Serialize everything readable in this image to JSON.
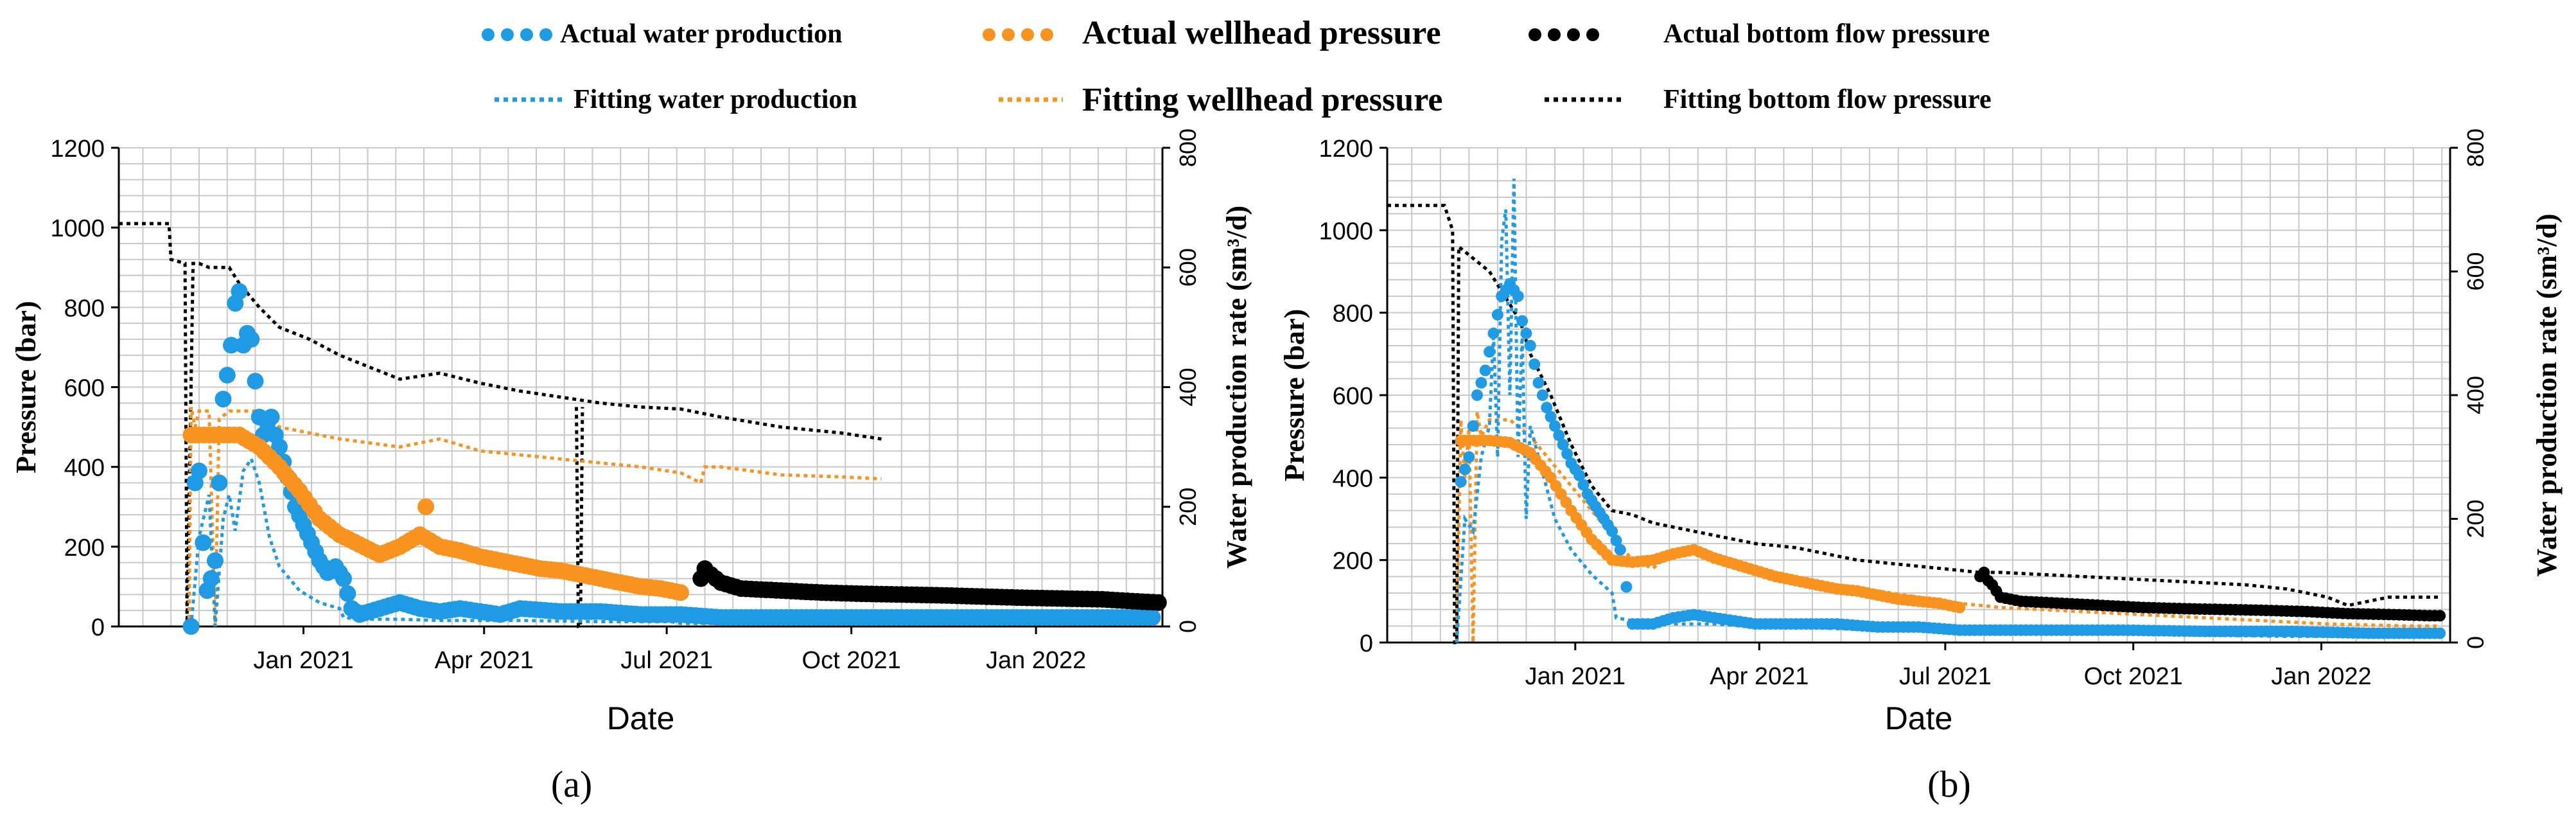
{
  "colors": {
    "water": "#1f9be5",
    "wellhead": "#f7931e",
    "bottom": "#000000",
    "grid": "#c9c9c9"
  },
  "legend": {
    "actual_water": "Actual water production",
    "actual_wellhead": "Actual wellhead pressure",
    "actual_bottom": "Actual bottom flow pressure",
    "fitting_water": "Fitting water production",
    "fitting_wellhead": "Fitting wellhead pressure",
    "fitting_bottom": "Fitting bottom flow pressure"
  },
  "chart_data": [
    {
      "id": "a",
      "panel_label": "(a)",
      "type": "line",
      "title": "",
      "xlabel": "Date",
      "ylabel_left": "Pressure (bar)",
      "ylabel_right": "Water production rate (sm³/d)",
      "ylim_left": [
        0,
        1200
      ],
      "ylim_right": [
        0,
        800
      ],
      "yticks_left": [
        0,
        200,
        400,
        600,
        800,
        1000,
        1200
      ],
      "yticks_right": [
        0,
        200,
        400,
        600,
        800
      ],
      "x_unit": "days since 2020-10-01",
      "xlim": [
        0,
        520
      ],
      "xticks": [
        {
          "day": 92,
          "label": "Jan 2021"
        },
        {
          "day": 182,
          "label": "Apr 2021"
        },
        {
          "day": 273,
          "label": "Jul 2021"
        },
        {
          "day": 365,
          "label": "Oct 2021"
        },
        {
          "day": 457,
          "label": "Jan 2022"
        }
      ],
      "grid": true,
      "series": [
        {
          "name": "Fitting bottom flow pressure",
          "axis": "left",
          "style": "dotted",
          "color": "#000000",
          "x": [
            0,
            25,
            26,
            33,
            34,
            37,
            40,
            45,
            55,
            60,
            70,
            80,
            95,
            110,
            125,
            140,
            160,
            180,
            200,
            220,
            240,
            260,
            280,
            300,
            330,
            360,
            380
          ],
          "y": [
            1010,
            1010,
            920,
            910,
            0,
            910,
            910,
            900,
            900,
            860,
            800,
            750,
            720,
            680,
            650,
            620,
            635,
            610,
            590,
            575,
            560,
            550,
            545,
            525,
            500,
            485,
            470
          ]
        },
        {
          "name": "Fitting bottom flow pressure (spike)",
          "axis": "left",
          "style": "dotted",
          "color": "#000000",
          "x": [
            228,
            229,
            230,
            231
          ],
          "y": [
            550,
            0,
            0,
            550
          ]
        },
        {
          "name": "Fitting wellhead pressure",
          "axis": "left",
          "style": "dotted",
          "color": "#f7931e",
          "x": [
            35,
            36,
            38,
            40,
            45,
            48,
            50,
            55,
            60,
            70,
            80,
            90,
            100,
            110,
            125,
            140,
            160,
            180,
            200,
            220,
            240,
            260,
            280,
            290,
            292,
            300,
            330,
            360,
            380
          ],
          "y": [
            0,
            550,
            500,
            540,
            540,
            0,
            520,
            540,
            540,
            540,
            500,
            490,
            480,
            470,
            460,
            450,
            470,
            440,
            430,
            420,
            410,
            400,
            385,
            360,
            400,
            400,
            380,
            375,
            370
          ]
        },
        {
          "name": "Fitting water production",
          "axis": "right",
          "style": "dotted",
          "color": "#1f9be5",
          "x": [
            36,
            40,
            45,
            48,
            52,
            55,
            58,
            62,
            66,
            70,
            75,
            80,
            90,
            100,
            110,
            112,
            120,
            140,
            160,
            200,
            240,
            275,
            280,
            300,
            340,
            380
          ],
          "y": [
            0,
            150,
            220,
            0,
            180,
            220,
            160,
            260,
            280,
            240,
            150,
            100,
            60,
            40,
            30,
            15,
            12,
            12,
            10,
            10,
            8,
            8,
            5,
            5,
            5,
            5
          ]
        },
        {
          "name": "Actual water production",
          "axis": "right",
          "style": "dots",
          "color": "#1f9be5",
          "x": [
            36,
            38,
            40,
            42,
            44,
            46,
            48,
            50,
            52,
            54,
            56,
            58,
            60,
            62,
            64,
            66,
            68,
            70,
            72,
            74,
            76,
            78,
            80,
            84,
            88,
            92,
            96,
            100,
            104,
            108,
            112,
            116,
            120,
            130,
            140,
            150,
            160,
            170,
            180,
            190,
            200,
            220,
            240,
            260,
            280,
            300,
            330,
            360,
            400,
            440,
            480,
            515
          ],
          "y": [
            0,
            240,
            260,
            140,
            60,
            80,
            110,
            240,
            380,
            420,
            470,
            540,
            560,
            470,
            490,
            480,
            410,
            350,
            320,
            340,
            350,
            320,
            300,
            250,
            200,
            170,
            140,
            110,
            90,
            100,
            80,
            30,
            20,
            30,
            40,
            30,
            25,
            30,
            25,
            20,
            30,
            25,
            25,
            20,
            20,
            15,
            15,
            15,
            15,
            15,
            15,
            15
          ]
        },
        {
          "name": "Actual wellhead pressure",
          "axis": "left",
          "style": "dots",
          "color": "#f7931e",
          "x": [
            36,
            40,
            50,
            60,
            70,
            80,
            90,
            100,
            110,
            120,
            130,
            140,
            150,
            160,
            170,
            180,
            190,
            200,
            210,
            220,
            230,
            240,
            250,
            260,
            270,
            280
          ],
          "y": [
            480,
            480,
            480,
            480,
            450,
            400,
            340,
            270,
            230,
            205,
            180,
            200,
            230,
            200,
            190,
            175,
            165,
            155,
            145,
            140,
            130,
            120,
            110,
            100,
            95,
            85
          ]
        },
        {
          "name": "Actual wellhead pressure (outlier)",
          "axis": "left",
          "style": "dots",
          "color": "#f7931e",
          "x": [
            153
          ],
          "y": [
            300
          ]
        },
        {
          "name": "Actual bottom flow pressure",
          "axis": "left",
          "style": "dots",
          "color": "#000000",
          "x": [
            290,
            292,
            295,
            300,
            310,
            330,
            350,
            370,
            390,
            410,
            430,
            450,
            470,
            490,
            500,
            510,
            518
          ],
          "y": [
            120,
            145,
            130,
            110,
            95,
            90,
            85,
            82,
            80,
            78,
            75,
            72,
            70,
            68,
            65,
            62,
            60
          ]
        }
      ]
    },
    {
      "id": "b",
      "panel_label": "(b)",
      "type": "line",
      "title": "",
      "xlabel": "Date",
      "ylabel_left": "Pressure (bar)",
      "ylabel_right": "Water production rate (sm³/d)",
      "ylim_left": [
        0,
        1200
      ],
      "ylim_right": [
        0,
        800
      ],
      "yticks_left": [
        0,
        200,
        400,
        600,
        800,
        1000,
        1200
      ],
      "yticks_right": [
        0,
        200,
        400,
        600,
        800
      ],
      "x_unit": "days since 2020-10-01",
      "xlim": [
        0,
        520
      ],
      "xticks": [
        {
          "day": 92,
          "label": "Jan 2021"
        },
        {
          "day": 182,
          "label": "Apr 2021"
        },
        {
          "day": 273,
          "label": "Jul 2021"
        },
        {
          "day": 365,
          "label": "Oct 2021"
        },
        {
          "day": 457,
          "label": "Jan 2022"
        }
      ],
      "grid": true,
      "series": [
        {
          "name": "Fitting bottom flow pressure",
          "axis": "left",
          "style": "dotted",
          "color": "#000000",
          "x": [
            0,
            28,
            32,
            33,
            34,
            35,
            40,
            45,
            50,
            55,
            60,
            65,
            70,
            80,
            90,
            100,
            110,
            120,
            130,
            140,
            150,
            160,
            170,
            180,
            190,
            200,
            210,
            220,
            230,
            240,
            250,
            260,
            270,
            280,
            290,
            300,
            320,
            340,
            360,
            380,
            400,
            420,
            440,
            460,
            470,
            480,
            490,
            500,
            510,
            515
          ],
          "y": [
            1060,
            1060,
            1000,
            0,
            0,
            960,
            940,
            920,
            900,
            860,
            820,
            780,
            700,
            600,
            480,
            380,
            320,
            310,
            290,
            280,
            270,
            260,
            250,
            240,
            235,
            230,
            220,
            210,
            200,
            195,
            190,
            185,
            180,
            175,
            170,
            170,
            165,
            160,
            155,
            150,
            145,
            140,
            130,
            110,
            90,
            100,
            110,
            110,
            110,
            110
          ]
        },
        {
          "name": "Fitting wellhead pressure",
          "axis": "left",
          "style": "dotted",
          "color": "#f7931e",
          "x": [
            34,
            36,
            38,
            40,
            42,
            44,
            46,
            50,
            55,
            60,
            65,
            70,
            80,
            90,
            100,
            110,
            120,
            130,
            140,
            150,
            160,
            170,
            180,
            190,
            200,
            220,
            240,
            260,
            280,
            300,
            340,
            380,
            420,
            460,
            500,
            515
          ],
          "y": [
            0,
            540,
            400,
            520,
            0,
            560,
            500,
            540,
            540,
            540,
            520,
            500,
            440,
            380,
            320,
            260,
            200,
            180,
            220,
            230,
            210,
            190,
            170,
            160,
            150,
            140,
            125,
            110,
            95,
            85,
            75,
            65,
            55,
            45,
            40,
            40
          ]
        },
        {
          "name": "Fitting water production",
          "axis": "right",
          "style": "dotted",
          "color": "#1f9be5",
          "x": [
            34,
            38,
            42,
            46,
            50,
            52,
            54,
            56,
            58,
            60,
            62,
            64,
            66,
            68,
            70,
            74,
            78,
            82,
            90,
            100,
            110,
            112,
            120,
            140,
            160,
            180,
            200,
            240,
            280,
            320,
            360,
            400,
            440,
            480,
            515
          ],
          "y": [
            0,
            200,
            180,
            300,
            350,
            500,
            300,
            650,
            700,
            400,
            750,
            300,
            500,
            200,
            350,
            300,
            250,
            200,
            150,
            110,
            80,
            40,
            35,
            30,
            30,
            25,
            25,
            20,
            18,
            15,
            15,
            12,
            10,
            10,
            10
          ]
        },
        {
          "name": "Actual water production",
          "axis": "right",
          "style": "dots",
          "color": "#1f9be5",
          "x": [
            36,
            40,
            44,
            48,
            52,
            56,
            60,
            64,
            66,
            70,
            74,
            78,
            82,
            86,
            90,
            94,
            98,
            102,
            106,
            110,
            114,
            120,
            130,
            140,
            150,
            160,
            180,
            200,
            220,
            240,
            260,
            280,
            300,
            330,
            360,
            400,
            440,
            480,
            515
          ],
          "y": [
            260,
            300,
            400,
            440,
            500,
            560,
            580,
            560,
            520,
            480,
            420,
            380,
            350,
            320,
            290,
            270,
            240,
            220,
            200,
            180,
            150,
            30,
            30,
            40,
            45,
            40,
            30,
            30,
            30,
            25,
            25,
            20,
            20,
            20,
            20,
            18,
            18,
            15,
            15
          ]
        },
        {
          "name": "Actual wellhead pressure",
          "axis": "left",
          "style": "dots",
          "color": "#f7931e",
          "x": [
            36,
            40,
            50,
            60,
            70,
            80,
            90,
            100,
            110,
            120,
            130,
            140,
            150,
            160,
            170,
            180,
            190,
            200,
            210,
            220,
            230,
            240,
            250,
            260,
            270,
            280
          ],
          "y": [
            490,
            490,
            490,
            485,
            460,
            400,
            320,
            250,
            200,
            195,
            200,
            215,
            225,
            205,
            190,
            175,
            160,
            150,
            140,
            130,
            125,
            115,
            105,
            100,
            95,
            85
          ]
        },
        {
          "name": "Actual bottom flow pressure",
          "axis": "left",
          "style": "dots",
          "color": "#000000",
          "x": [
            290,
            292,
            294,
            296,
            300,
            310,
            330,
            350,
            370,
            390,
            410,
            430,
            450,
            470,
            490,
            510,
            515
          ],
          "y": [
            160,
            170,
            150,
            140,
            110,
            100,
            95,
            90,
            85,
            82,
            80,
            78,
            75,
            70,
            68,
            65,
            65
          ]
        }
      ]
    }
  ]
}
